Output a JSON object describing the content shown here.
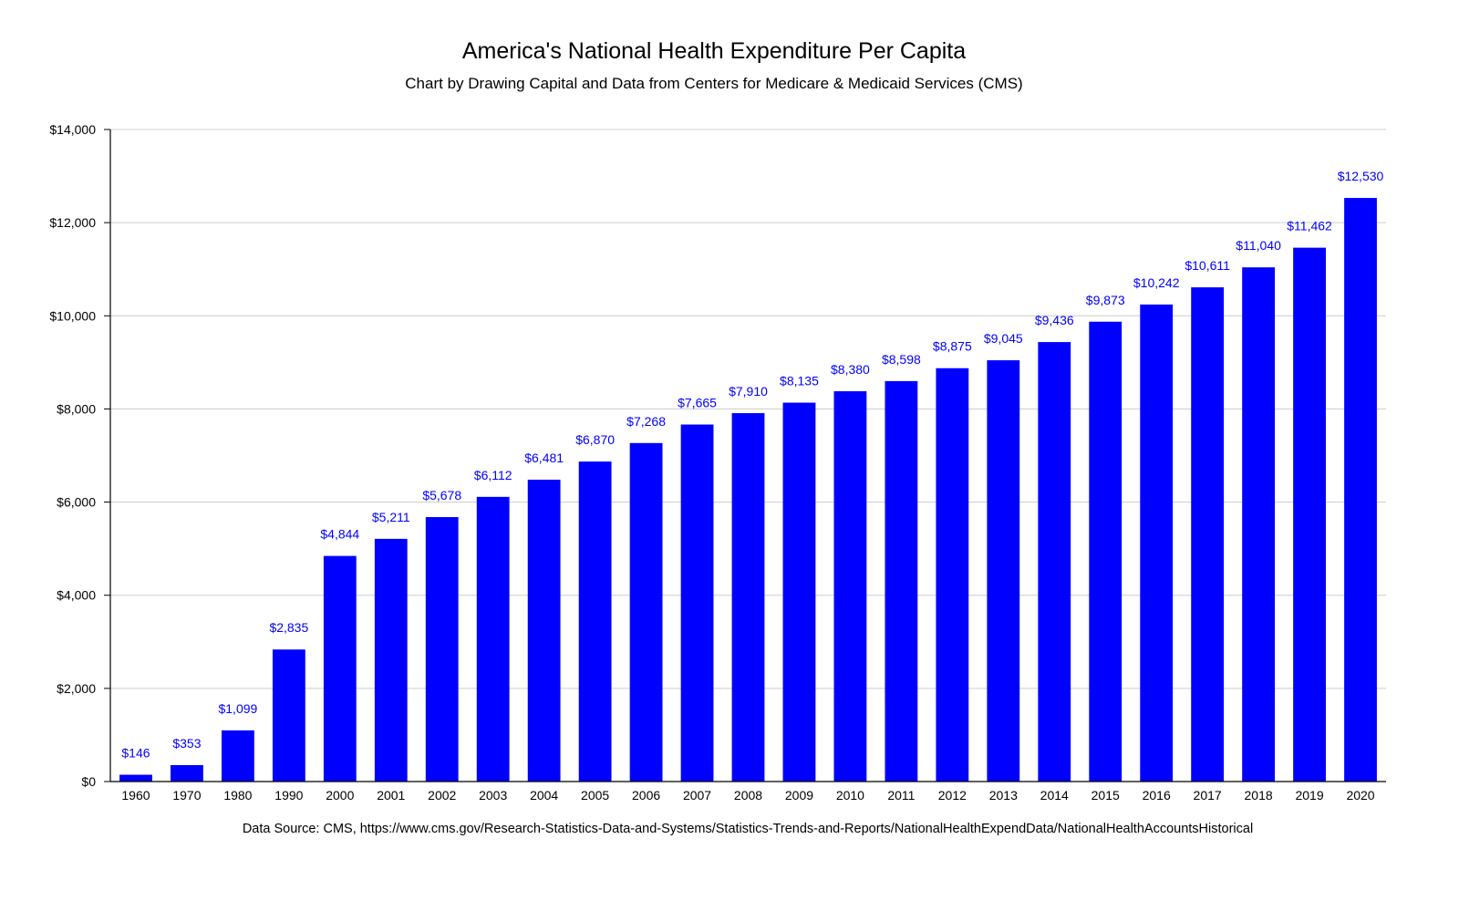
{
  "chart_data": {
    "type": "bar",
    "title": "America's National Health Expenditure Per Capita",
    "subtitle": "Chart by Drawing Capital and Data from Centers for Medicare & Medicaid Services (CMS)",
    "source": "Data Source: CMS, https://www.cms.gov/Research-Statistics-Data-and-Systems/Statistics-Trends-and-Reports/NationalHealthExpendData/NationalHealthAccountsHistorical",
    "categories": [
      "1960",
      "1970",
      "1980",
      "1990",
      "2000",
      "2001",
      "2002",
      "2003",
      "2004",
      "2005",
      "2006",
      "2007",
      "2008",
      "2009",
      "2010",
      "2011",
      "2012",
      "2013",
      "2014",
      "2015",
      "2016",
      "2017",
      "2018",
      "2019",
      "2020"
    ],
    "values": [
      146,
      353,
      1099,
      2835,
      4844,
      5211,
      5678,
      6112,
      6481,
      6870,
      7268,
      7665,
      7910,
      8135,
      8380,
      8598,
      8875,
      9045,
      9436,
      9873,
      10242,
      10611,
      11040,
      11462,
      12530
    ],
    "data_labels": [
      "$146",
      "$353",
      "$1,099",
      "$2,835",
      "$4,844",
      "$5,211",
      "$5,678",
      "$6,112",
      "$6,481",
      "$6,870",
      "$7,268",
      "$7,665",
      "$7,910",
      "$8,135",
      "$8,380",
      "$8,598",
      "$8,875",
      "$9,045",
      "$9,436",
      "$9,873",
      "$10,242",
      "$10,611",
      "$11,040",
      "$11,462",
      "$12,530"
    ],
    "y_ticks": [
      0,
      2000,
      4000,
      6000,
      8000,
      10000,
      12000,
      14000
    ],
    "y_tick_labels": [
      "$0",
      "$2,000",
      "$4,000",
      "$6,000",
      "$8,000",
      "$10,000",
      "$12,000",
      "$14,000"
    ],
    "ylim": [
      0,
      14000
    ],
    "xlabel": "",
    "ylabel": "",
    "grid": true,
    "legend": "none",
    "bar_color": "#0000ff",
    "label_color": "#0000ff",
    "grid_color": "#cccccc",
    "axis_color": "#000000"
  }
}
